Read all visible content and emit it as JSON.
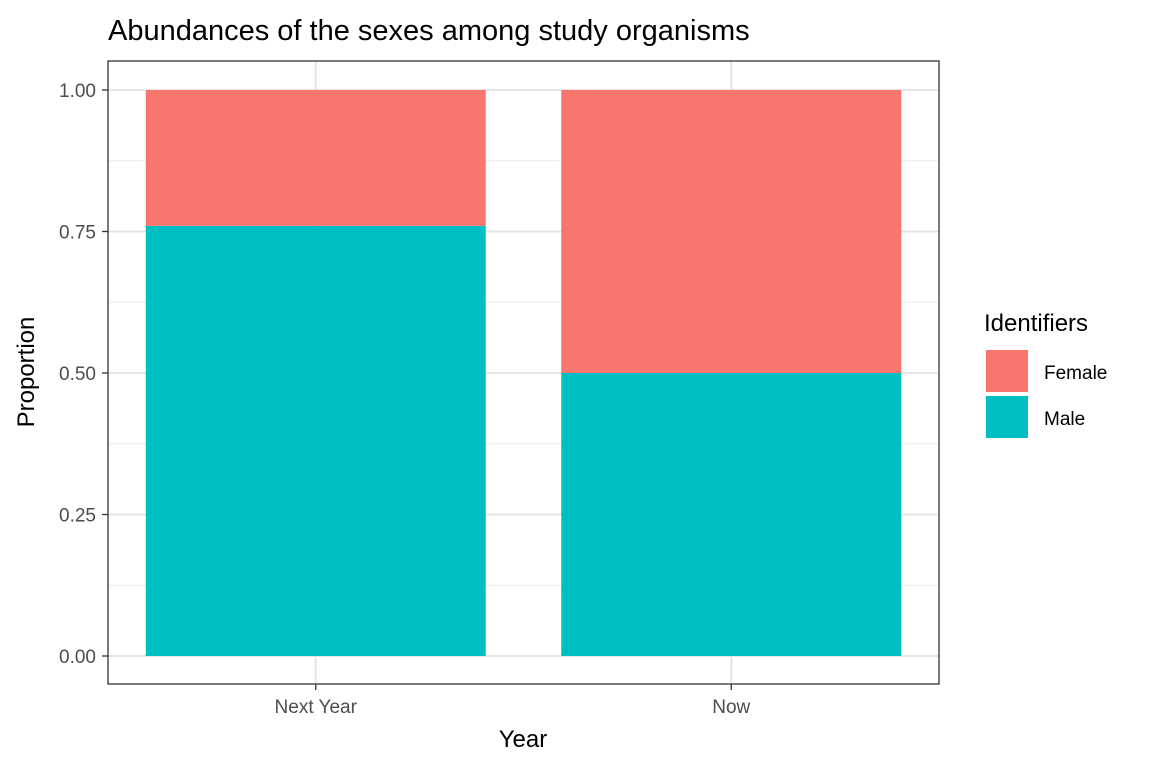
{
  "chart_data": {
    "type": "bar",
    "stacked": true,
    "title": "Abundances of the sexes among study organisms",
    "xlabel": "Year",
    "ylabel": "Proportion",
    "categories": [
      "Next Year",
      "Now"
    ],
    "series": [
      {
        "name": "Female",
        "values": [
          0.24,
          0.5
        ],
        "color": "#F8766D"
      },
      {
        "name": "Male",
        "values": [
          0.76,
          0.5
        ],
        "color": "#00BFC4"
      }
    ],
    "ylim": [
      0,
      1
    ],
    "yticks": [
      "0.00",
      "0.25",
      "0.50",
      "0.75",
      "1.00"
    ],
    "grid": true,
    "legend": {
      "title": "Identifiers",
      "position": "right",
      "items": [
        "Female",
        "Male"
      ]
    }
  }
}
